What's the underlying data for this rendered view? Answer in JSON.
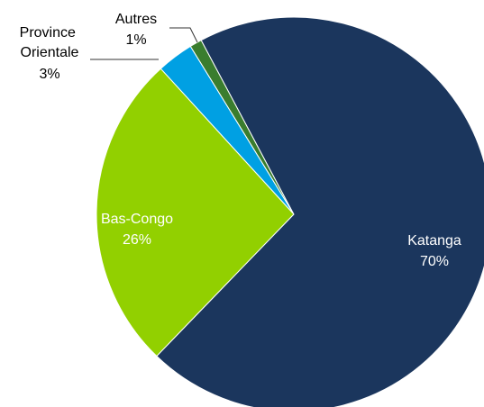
{
  "chart_data": {
    "type": "pie",
    "categories": [
      "Katanga",
      "Bas-Congo",
      "Province Orientale",
      "Autres"
    ],
    "values": [
      70,
      26,
      3,
      1
    ],
    "value_labels": [
      "70%",
      "26%",
      "3%",
      "1%"
    ],
    "colors": [
      "#1b365d",
      "#92d000",
      "#00a0e3",
      "#3a7d2e"
    ]
  }
}
